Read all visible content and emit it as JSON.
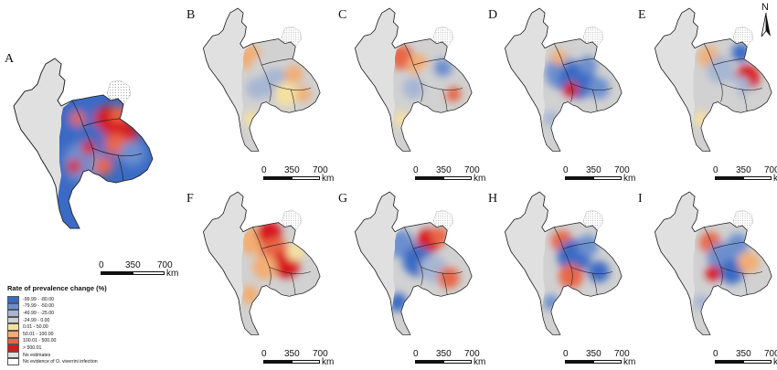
{
  "north_label": "N",
  "scale": {
    "ticks": [
      "0",
      "350",
      "700"
    ],
    "unit": "km"
  },
  "panels": [
    {
      "letter": "A",
      "layout": "big",
      "pattern": 0
    },
    {
      "letter": "B",
      "layout": "small",
      "pattern": 1
    },
    {
      "letter": "C",
      "layout": "small",
      "pattern": 2
    },
    {
      "letter": "D",
      "layout": "small",
      "pattern": 3
    },
    {
      "letter": "E",
      "layout": "small",
      "pattern": 4
    },
    {
      "letter": "F",
      "layout": "small",
      "pattern": 5
    },
    {
      "letter": "G",
      "layout": "small",
      "pattern": 6
    },
    {
      "letter": "H",
      "layout": "small",
      "pattern": 7
    },
    {
      "letter": "I",
      "layout": "small",
      "pattern": 8
    }
  ],
  "legend": {
    "title": "Rate of prevalence change (%)",
    "classes": [
      {
        "label": "-99.99 - -80.00",
        "color": "#3a6bc4"
      },
      {
        "label": "-79.99 - -50.00",
        "color": "#6c8fcf"
      },
      {
        "label": "-49.99 - -25.00",
        "color": "#a6b6d3"
      },
      {
        "label": "-24.99 - 0.00",
        "color": "#d1d1d1"
      },
      {
        "label": "0.01 - 50.00",
        "color": "#f5e0a1"
      },
      {
        "label": "50.01 - 100.00",
        "color": "#f2ad73"
      },
      {
        "label": "100.01 - 500.00",
        "color": "#e86646"
      },
      {
        "label": "> 500.01",
        "color": "#d7191c"
      },
      {
        "label": "No estimates",
        "color": "#e0e0e0"
      },
      {
        "label": "No evidence of O. viverrini infection",
        "color": "#ffffff"
      }
    ]
  }
}
